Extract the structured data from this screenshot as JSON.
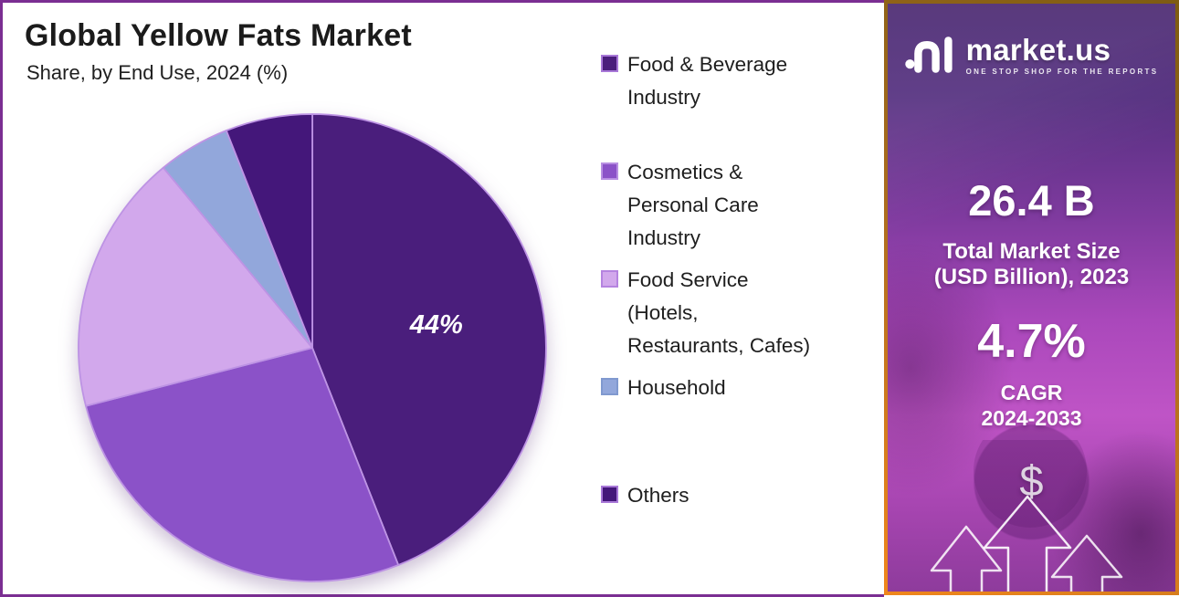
{
  "page": {
    "title": "Global Yellow Fats Market",
    "subtitle": "Share, by End Use, 2024 (%)"
  },
  "chart_data": {
    "type": "pie",
    "title": "Global Yellow Fats Market",
    "subtitle": "Share, by End Use, 2024 (%)",
    "unit": "%",
    "start_angle_deg": 0,
    "direction": "clockwise",
    "legend_position": "right",
    "shown_data_labels": [
      "44%"
    ],
    "segments": [
      {
        "label": "Food & Beverage Industry",
        "value": 44,
        "data_label": "44%",
        "color": "#4a1e7c",
        "swatch_border": "#a878d8"
      },
      {
        "label": "Cosmetics & Personal Care Industry",
        "value": 27,
        "data_label": "",
        "color": "#8b52c8",
        "swatch_border": "#b88fe2"
      },
      {
        "label": "Food Service (Hotels, Restaurants, Cafes)",
        "value": 18,
        "data_label": "",
        "color": "#d2a8ec",
        "swatch_border": "#b583e0"
      },
      {
        "label": "Household",
        "value": 5,
        "data_label": "",
        "color": "#92a7db",
        "swatch_border": "#8099cf"
      },
      {
        "label": "Others",
        "value": 6,
        "data_label": "",
        "color": "#44177a",
        "swatch_border": "#a878d8"
      }
    ]
  },
  "legend": {
    "items": [
      {
        "text": "Food & Beverage\nIndustry"
      },
      {
        "text": "Cosmetics &\nPersonal Care\nIndustry"
      },
      {
        "text": "Food Service\n(Hotels,\nRestaurants, Cafes)"
      },
      {
        "text": "Household"
      },
      {
        "text": "Others"
      }
    ]
  },
  "sidebar": {
    "brand_name": "market.us",
    "brand_tagline": "ONE STOP SHOP FOR THE REPORTS",
    "market_size_value": "26.4 B",
    "market_size_label": "Total Market Size\n(USD Billion), 2023",
    "cagr_value": "4.7%",
    "cagr_label": "CAGR\n2024-2033",
    "currency_symbol": "$"
  },
  "colors": {
    "chart_panel_border": "#7b2e92",
    "slice_stroke": "#bd93e4",
    "sidebar_border_dark": "#7e5c12",
    "sidebar_border_bright": "#ef861c",
    "sidebar_top": "#4c2a72",
    "sidebar_mid": "#aa48bb",
    "sidebar_bottom": "#8e3b9c"
  }
}
